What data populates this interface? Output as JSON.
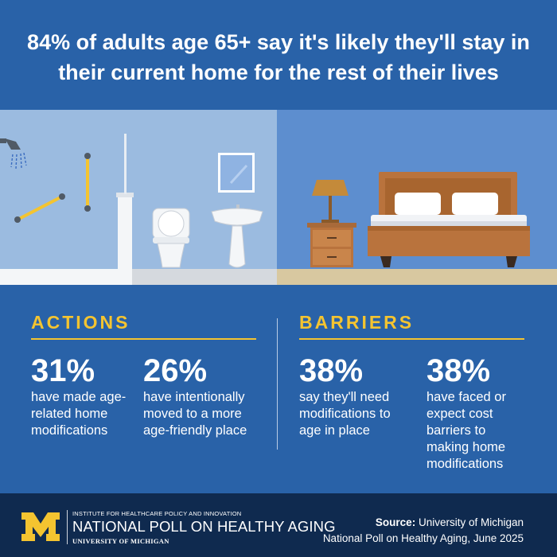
{
  "headline": "84% of adults age 65+ say it's likely they'll stay in their current home for the rest of their lives",
  "actions": {
    "title": "ACTIONS",
    "stats": [
      {
        "value": "31%",
        "text": "have made age-related home modifications"
      },
      {
        "value": "26%",
        "text": "have intentionally moved to a more age-friendly place"
      }
    ]
  },
  "barriers": {
    "title": "BARRIERS",
    "stats": [
      {
        "value": "38%",
        "text": "say they'll need modifications to age in place"
      },
      {
        "value": "38%",
        "text": "have faced or expect cost barriers to making home modifications"
      }
    ]
  },
  "footer": {
    "logo_letter": "M",
    "institute": "INSTITUTE FOR HEALTHCARE POLICY AND INNOVATION",
    "poll_name": "NATIONAL POLL ON HEALTHY AGING",
    "university": "UNIVERSITY OF MICHIGAN",
    "source_label": "Source:",
    "source_line1": "University of Michigan",
    "source_line2": "National Poll on Healthy Aging, June 2025"
  },
  "colors": {
    "background": "#2962a8",
    "accent": "#f4c430",
    "footer": "#0f2a4f",
    "bathroom_wall": "#9bbbe0",
    "bedroom_wall": "#5d8ecf"
  },
  "icons": [
    "shower-head-icon",
    "grab-bar-icon",
    "toilet-icon",
    "sink-icon",
    "mirror-icon",
    "bed-icon",
    "nightstand-icon",
    "lamp-icon",
    "michigan-block-m-logo"
  ]
}
